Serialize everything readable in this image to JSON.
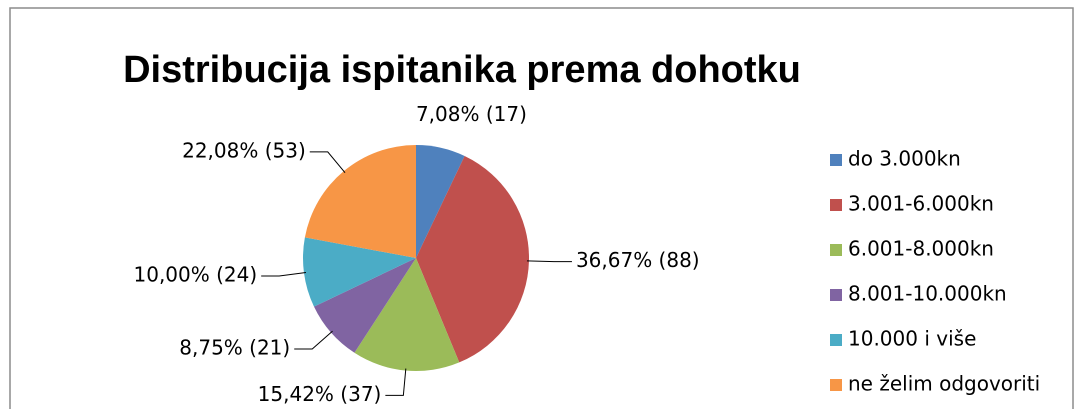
{
  "chart_data": {
    "type": "pie",
    "title": "Distribucija ispitanika prema dohotku",
    "categories": [
      "do 3.000kn",
      "3.001-6.000kn",
      "6.001-8.000kn",
      "8.001-10.000kn",
      "10.000 i više",
      "ne želim odgovoriti"
    ],
    "values": [
      7.08,
      36.67,
      15.42,
      8.75,
      10.0,
      22.08
    ],
    "value_labels": [
      "7,08% (17)",
      "36,67% (88)",
      "15,42% (37)",
      "8,75% (21)",
      "10,00% (24)",
      "22,08% (53)"
    ],
    "colors": [
      "#4f81bd",
      "#c0504d",
      "#9bbb59",
      "#8064a2",
      "#4bacc6",
      "#f79646"
    ],
    "legend": "right"
  }
}
